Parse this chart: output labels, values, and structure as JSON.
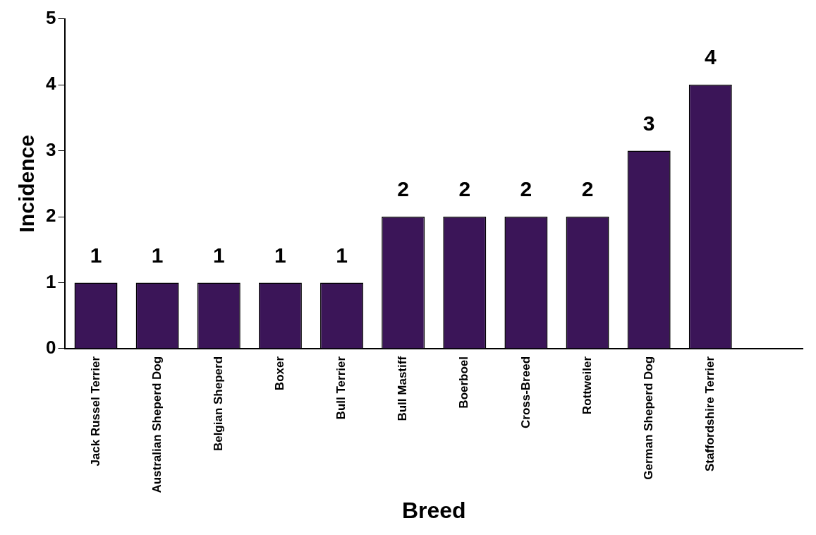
{
  "chart_data": {
    "type": "bar",
    "xlabel": "Breed",
    "ylabel": "Incidence",
    "categories": [
      "Jack Russel Terrier",
      "Australian Sheperd Dog",
      "Belgian Sheperd",
      "Boxer",
      "Bull Terrier",
      "Bull Mastiff",
      "Boerboel",
      "Cross-Breed",
      "Rottweiler",
      "German Sheperd Dog",
      "Staffordshire Terrier",
      null
    ],
    "values": [
      1,
      1,
      1,
      1,
      1,
      2,
      2,
      2,
      2,
      3,
      4,
      null
    ],
    "color": "#3b1558",
    "ylim": [
      0,
      5
    ],
    "yticks": [
      0,
      1,
      2,
      3,
      4,
      5
    ],
    "grid": false,
    "legend": false,
    "data_labels": true
  }
}
